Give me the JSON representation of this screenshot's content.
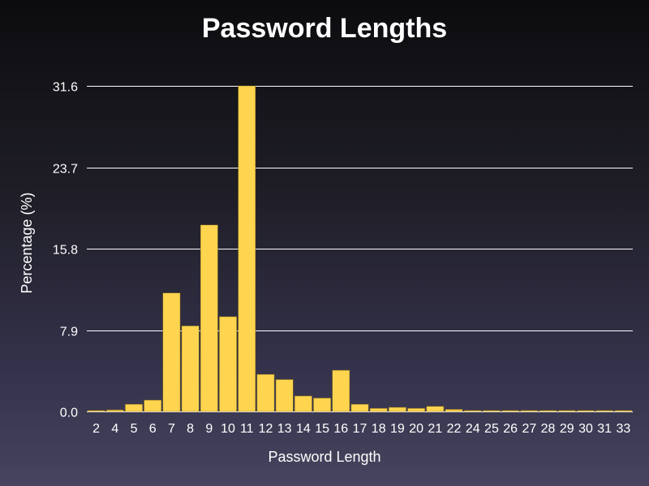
{
  "chart_data": {
    "type": "bar",
    "title": "Password Lengths",
    "xlabel": "Password Length",
    "ylabel": "Percentage (%)",
    "ylim": [
      0,
      31.6
    ],
    "y_ticks": [
      "0.0",
      "7.9",
      "15.8",
      "23.7",
      "31.6"
    ],
    "y_tick_values": [
      0,
      7.9,
      15.8,
      23.7,
      31.6
    ],
    "grid": true,
    "bar_color": "#ffd54f",
    "categories": [
      "2",
      "4",
      "5",
      "6",
      "7",
      "8",
      "9",
      "10",
      "11",
      "12",
      "13",
      "14",
      "15",
      "16",
      "17",
      "18",
      "19",
      "20",
      "21",
      "22",
      "24",
      "25",
      "26",
      "27",
      "28",
      "29",
      "30",
      "31",
      "33"
    ],
    "values": [
      0.1,
      0.15,
      0.7,
      1.1,
      11.5,
      8.3,
      18.1,
      9.2,
      31.6,
      3.6,
      3.1,
      1.5,
      1.3,
      4.0,
      0.7,
      0.3,
      0.4,
      0.3,
      0.5,
      0.2,
      0.1,
      0.1,
      0.1,
      0.1,
      0.1,
      0.1,
      0.1,
      0.1,
      0.1
    ]
  }
}
